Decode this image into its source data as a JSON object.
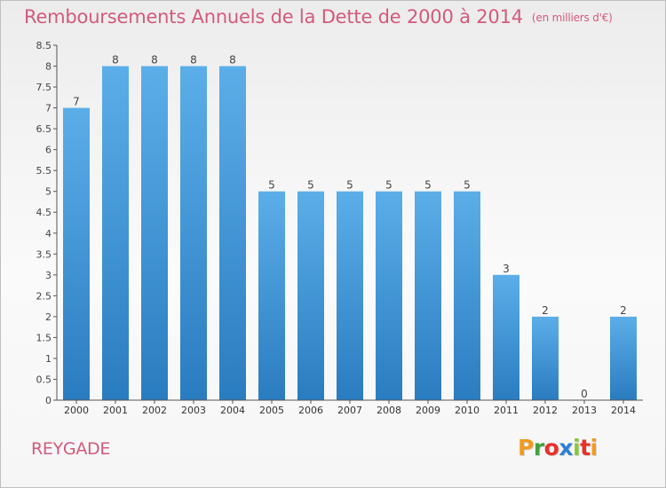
{
  "header": {
    "title": "Remboursements Annuels de la Dette de 2000 à 2014",
    "unit": "(en milliers d'€)"
  },
  "footer": {
    "commune": "REYGADE",
    "logo_text": "Proxiti",
    "logo_colors": [
      "#f29a1f",
      "#3da33a",
      "#e8302a",
      "#2f7fd6",
      "#8bc53f",
      "#e8302a",
      "#f29a1f"
    ]
  },
  "chart_data": {
    "type": "bar",
    "categories": [
      "2000",
      "2001",
      "2002",
      "2003",
      "2004",
      "2005",
      "2006",
      "2007",
      "2008",
      "2009",
      "2010",
      "2011",
      "2012",
      "2013",
      "2014"
    ],
    "values": [
      7,
      8,
      8,
      8,
      8,
      5,
      5,
      5,
      5,
      5,
      5,
      3,
      2,
      0,
      2
    ],
    "data_labels": [
      "7",
      "8",
      "8",
      "8",
      "8",
      "5",
      "5",
      "5",
      "5",
      "5",
      "5",
      "3",
      "2",
      "0",
      "2"
    ],
    "y_ticks": [
      "0",
      "0.5",
      "1",
      "1.5",
      "2",
      "2.5",
      "3",
      "3.5",
      "4",
      "4.5",
      "5",
      "5.5",
      "6",
      "6.5",
      "7",
      "7.5",
      "8",
      "8.5"
    ],
    "ylim": [
      0,
      8.5
    ],
    "bar_color_top": "#5baee8",
    "bar_color_bottom": "#2a7cc0",
    "grid": false
  }
}
